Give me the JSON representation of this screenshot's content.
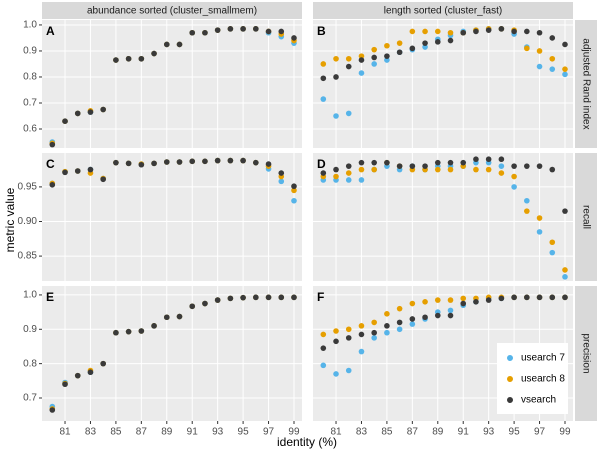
{
  "chart_data": {
    "type": "scatter",
    "xlabel": "identity (%)",
    "ylabel": "metric value",
    "columns": [
      "abundance sorted (cluster_smallmem)",
      "length sorted (cluster_fast)"
    ],
    "rows": [
      "adjusted Rand index",
      "recall",
      "precision"
    ],
    "x": [
      80,
      81,
      82,
      83,
      84,
      85,
      86,
      87,
      88,
      89,
      90,
      91,
      92,
      93,
      94,
      95,
      96,
      97,
      98,
      99
    ],
    "xlim": [
      79.19,
      99.63
    ],
    "xticks": [
      81,
      83,
      85,
      87,
      89,
      91,
      93,
      95,
      97,
      99
    ],
    "grid": true,
    "legend_position": "bottom-right",
    "series": [
      {
        "name": "usearch 7",
        "color": "#56B4E9"
      },
      {
        "name": "usearch 8",
        "color": "#E69F00"
      },
      {
        "name": "vsearch",
        "color": "#3a3a3a"
      }
    ],
    "panels": [
      {
        "letter": "A",
        "ylim": [
          0.527,
          1.019
        ],
        "yticks": [
          0.6,
          0.7,
          0.8,
          0.9,
          {
            "value": 1,
            "label": "1.0"
          }
        ],
        "series": [
          {
            "values": [
              0.55,
              0.63,
              0.66,
              0.665,
              0.675,
              0.865,
              0.87,
              0.87,
              0.89,
              0.925,
              0.925,
              0.97,
              0.97,
              0.98,
              0.985,
              0.985,
              0.985,
              0.97,
              0.955,
              0.93
            ]
          },
          {
            "values": [
              0.545,
              0.63,
              0.66,
              0.67,
              0.675,
              0.865,
              0.87,
              0.87,
              0.89,
              0.925,
              0.925,
              0.97,
              0.97,
              0.98,
              0.985,
              0.985,
              0.985,
              0.975,
              0.965,
              0.94
            ]
          },
          {
            "values": [
              0.54,
              0.63,
              0.66,
              0.665,
              0.675,
              0.865,
              0.87,
              0.87,
              0.89,
              0.925,
              0.925,
              0.97,
              0.97,
              0.98,
              0.985,
              0.985,
              0.985,
              0.975,
              0.975,
              0.95
            ]
          }
        ]
      },
      {
        "letter": "B",
        "ylim": [
          0.527,
          1.019
        ],
        "yticks": [
          0.6,
          0.7,
          0.8,
          0.9,
          {
            "value": 1,
            "label": "1.0"
          }
        ],
        "series": [
          {
            "values": [
              0.715,
              0.65,
              0.66,
              0.815,
              0.85,
              0.865,
              0.895,
              0.905,
              0.915,
              0.945,
              0.96,
              0.975,
              0.98,
              0.985,
              0.985,
              0.965,
              0.915,
              0.84,
              0.83,
              0.81
            ]
          },
          {
            "values": [
              0.85,
              0.87,
              0.87,
              0.88,
              0.905,
              0.92,
              0.93,
              0.975,
              0.975,
              0.975,
              0.97,
              0.97,
              0.98,
              0.985,
              0.985,
              0.98,
              0.91,
              0.9,
              0.87,
              0.83
            ]
          },
          {
            "values": [
              0.795,
              0.8,
              0.84,
              0.865,
              0.875,
              0.88,
              0.895,
              0.91,
              0.93,
              0.935,
              0.94,
              0.97,
              0.975,
              0.98,
              0.985,
              0.975,
              0.975,
              0.97,
              0.95,
              0.925
            ]
          }
        ]
      },
      {
        "letter": "C",
        "ylim": [
          0.814,
          0.999
        ],
        "yticks": [
          0.85,
          {
            "value": 0.9,
            "label": "0.90"
          },
          0.95
        ],
        "series": [
          {
            "values": [
              0.955,
              0.972,
              0.973,
              0.975,
              0.962,
              0.985,
              0.984,
              0.983,
              0.984,
              0.986,
              0.986,
              0.987,
              0.987,
              0.988,
              0.988,
              0.988,
              0.985,
              0.976,
              0.958,
              0.93
            ]
          },
          {
            "values": [
              0.955,
              0.972,
              0.973,
              0.97,
              0.962,
              0.985,
              0.984,
              0.983,
              0.984,
              0.986,
              0.986,
              0.987,
              0.987,
              0.988,
              0.988,
              0.988,
              0.985,
              0.98,
              0.965,
              0.945
            ]
          },
          {
            "values": [
              0.953,
              0.971,
              0.973,
              0.975,
              0.961,
              0.985,
              0.984,
              0.982,
              0.984,
              0.986,
              0.986,
              0.987,
              0.987,
              0.988,
              0.988,
              0.988,
              0.985,
              0.983,
              0.97,
              0.951
            ]
          }
        ]
      },
      {
        "letter": "D",
        "ylim": [
          0.814,
          0.999
        ],
        "yticks": [
          0.85,
          {
            "value": 0.9,
            "label": "0.90"
          },
          0.95
        ],
        "series": [
          {
            "values": [
              0.96,
              0.96,
              0.96,
              0.96,
              0.975,
              0.98,
              0.975,
              0.98,
              0.975,
              0.98,
              0.98,
              0.98,
              0.985,
              0.985,
              0.98,
              0.95,
              0.93,
              0.885,
              0.855,
              0.82
            ]
          },
          {
            "values": [
              0.965,
              0.965,
              0.97,
              0.975,
              0.975,
              0.985,
              0.98,
              0.975,
              0.975,
              0.975,
              0.975,
              0.98,
              0.975,
              0.975,
              0.97,
              0.965,
              0.915,
              0.905,
              0.87,
              0.83
            ]
          },
          {
            "values": [
              0.97,
              0.975,
              0.98,
              0.985,
              0.985,
              0.985,
              0.98,
              0.98,
              0.98,
              0.985,
              0.985,
              0.985,
              0.99,
              0.99,
              0.99,
              0.98,
              0.98,
              0.98,
              0.975,
              0.915
            ]
          }
        ]
      },
      {
        "letter": "E",
        "ylim": [
          0.633,
          1.026
        ],
        "yticks": [
          0.7,
          0.8,
          0.9,
          {
            "value": 1,
            "label": "1.0"
          }
        ],
        "series": [
          {
            "values": [
              0.675,
              0.745,
              0.765,
              0.775,
              0.8,
              0.89,
              0.893,
              0.895,
              0.91,
              0.935,
              0.937,
              0.967,
              0.975,
              0.985,
              0.99,
              0.992,
              0.993,
              0.993,
              0.993,
              0.993
            ]
          },
          {
            "values": [
              0.668,
              0.742,
              0.765,
              0.78,
              0.8,
              0.89,
              0.893,
              0.895,
              0.91,
              0.935,
              0.937,
              0.967,
              0.975,
              0.985,
              0.99,
              0.992,
              0.993,
              0.993,
              0.993,
              0.993
            ]
          },
          {
            "values": [
              0.665,
              0.74,
              0.765,
              0.775,
              0.8,
              0.89,
              0.893,
              0.895,
              0.91,
              0.935,
              0.937,
              0.967,
              0.975,
              0.985,
              0.99,
              0.992,
              0.993,
              0.993,
              0.993,
              0.993
            ]
          }
        ]
      },
      {
        "letter": "F",
        "ylim": [
          0.633,
          1.026
        ],
        "yticks": [
          0.7,
          0.8,
          0.9,
          {
            "value": 1,
            "label": "1.0"
          }
        ],
        "series": [
          {
            "values": [
              0.795,
              0.77,
              0.78,
              0.835,
              0.875,
              0.89,
              0.9,
              0.915,
              0.93,
              0.95,
              0.955,
              0.97,
              0.98,
              0.99,
              0.99,
              0.993,
              0.993,
              0.993,
              0.993,
              0.993
            ]
          },
          {
            "values": [
              0.885,
              0.895,
              0.9,
              0.91,
              0.92,
              0.945,
              0.96,
              0.975,
              0.98,
              0.985,
              0.985,
              0.99,
              0.99,
              0.993,
              0.993,
              0.993,
              0.993,
              0.993,
              0.993,
              0.993
            ]
          },
          {
            "values": [
              0.845,
              0.865,
              0.875,
              0.885,
              0.89,
              0.91,
              0.92,
              0.93,
              0.935,
              0.94,
              0.94,
              0.975,
              0.98,
              0.985,
              0.99,
              0.993,
              0.993,
              0.993,
              0.993,
              0.993
            ]
          }
        ]
      }
    ]
  }
}
